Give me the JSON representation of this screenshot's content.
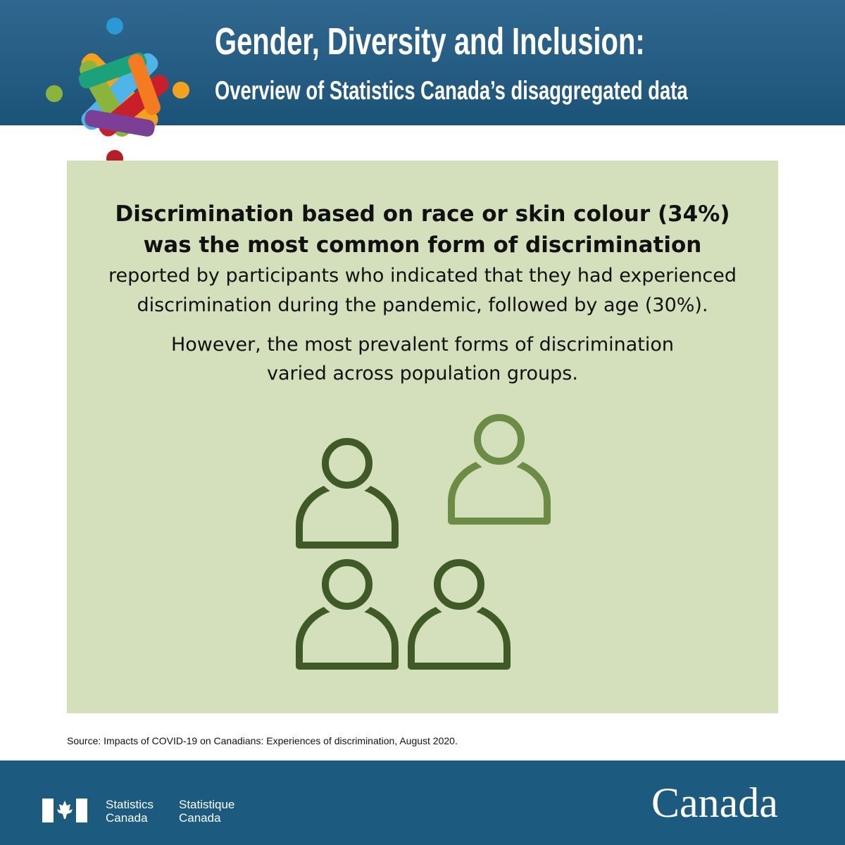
{
  "header": {
    "title": "Gender, Diversity and Inclusion:",
    "subtitle": "Overview of Statistics Canada’s disaggregated data"
  },
  "panel": {
    "headline": [
      "Discrimination based on race or skin colour (34%)",
      "was the most common form of discrimination"
    ],
    "body": [
      "reported by participants who indicated that they had experienced",
      "discrimination during the pandemic, followed by age (30%)."
    ],
    "note": [
      "However, the most prevalent forms of discrimination",
      "varied across population groups."
    ]
  },
  "source": "Source: Impacts of COVID-19 on Canadians: Experiences of discrimination, August 2020.",
  "footer": {
    "agency_en": [
      "Statistics",
      "Canada"
    ],
    "agency_fr": [
      "Statistique",
      "Canada"
    ],
    "wordmark": "Canada"
  }
}
